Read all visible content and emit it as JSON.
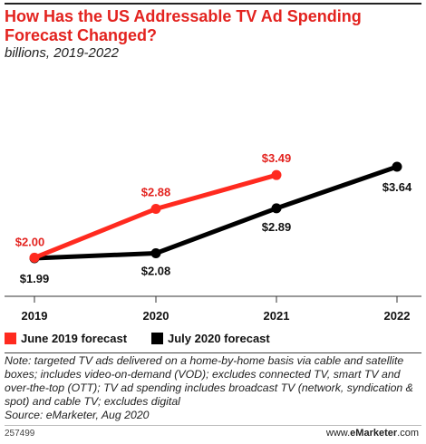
{
  "header": {
    "title": "How Has the US Addressable TV Ad Spending Forecast Changed?",
    "subtitle": "billions, 2019-2022"
  },
  "chart_data": {
    "type": "line",
    "categories": [
      "2019",
      "2020",
      "2021",
      "2022"
    ],
    "series": [
      {
        "name": "June 2019 forecast",
        "color": "#ff2a1f",
        "values": [
          2.0,
          2.88,
          3.49,
          null
        ],
        "labels": [
          "$2.00",
          "$2.88",
          "$3.49",
          ""
        ]
      },
      {
        "name": "July 2020 forecast",
        "color": "#000000",
        "values": [
          1.99,
          2.08,
          2.89,
          3.64
        ],
        "labels": [
          "$1.99",
          "$2.08",
          "$2.89",
          "$3.64"
        ]
      }
    ],
    "ylim": [
      1.92,
      3.85
    ],
    "grid": false,
    "legend": "bottom-left"
  },
  "footer": {
    "note": "Note: targeted TV ads delivered on a home-by-home basis via cable and satellite boxes; includes video-on-demand (VOD); excludes connected TV, smart TV and over-the-top (OTT); TV ad spending includes broadcast TV (network, syndication & spot) and cable TV; excludes digital",
    "source": "Source: eMarketer, Aug 2020",
    "chart_id": "257499",
    "brand_prefix": "www.",
    "brand_name": "eMarketer",
    "brand_suffix": ".com"
  }
}
